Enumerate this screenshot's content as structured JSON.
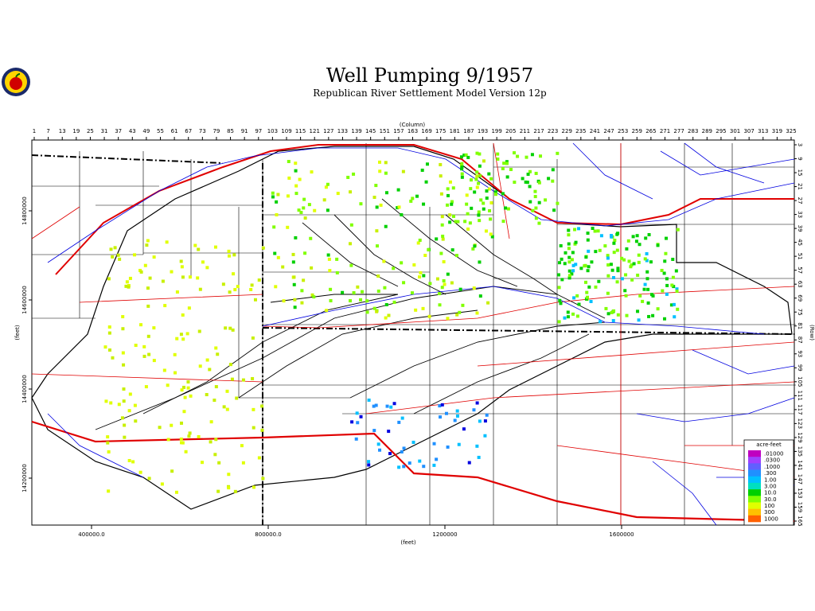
{
  "header": {
    "title": "Well Pumping  9/1957",
    "subtitle": "Republican River Settlement Model Version 12p"
  },
  "column_axis": {
    "label": "(Column)",
    "ticks": [
      1,
      7,
      13,
      19,
      25,
      31,
      37,
      43,
      49,
      55,
      61,
      67,
      73,
      79,
      85,
      91,
      97,
      103,
      109,
      115,
      121,
      127,
      133,
      139,
      145,
      151,
      157,
      163,
      169,
      175,
      181,
      187,
      193,
      199,
      205,
      211,
      217,
      223,
      229,
      235,
      241,
      247,
      253,
      259,
      265,
      271,
      277,
      283,
      289,
      295,
      301,
      307,
      313,
      319,
      325
    ]
  },
  "row_axis": {
    "label": "(Row)",
    "ticks": [
      3,
      9,
      15,
      21,
      27,
      33,
      39,
      45,
      51,
      57,
      63,
      69,
      75,
      81,
      87,
      93,
      99,
      105,
      111,
      117,
      123,
      129,
      135,
      141,
      147,
      153,
      159,
      165
    ]
  },
  "x_feet_axis": {
    "label": "(feet)",
    "ticks": [
      {
        "value": 400000,
        "label": "400000.0"
      },
      {
        "value": 800000,
        "label": "800000.0"
      },
      1200000,
      1600000
    ]
  },
  "y_feet_axis": {
    "label": "(feet)",
    "ticks": [
      14800000,
      14600000,
      14400000,
      14200000
    ]
  },
  "legend": {
    "title": "acre-feet",
    "labels": [
      ".01000",
      ".0300",
      ".1000",
      ".300",
      "1.00",
      "3.00",
      "10.0",
      "30.0",
      "100",
      "300",
      "1000"
    ],
    "colors": [
      "#c000c0",
      "#a040ff",
      "#6060ff",
      "#2090ff",
      "#00c0ff",
      "#00e0c0",
      "#00d000",
      "#80ff00",
      "#e0ff00",
      "#ffc000",
      "#ff6000"
    ]
  }
}
